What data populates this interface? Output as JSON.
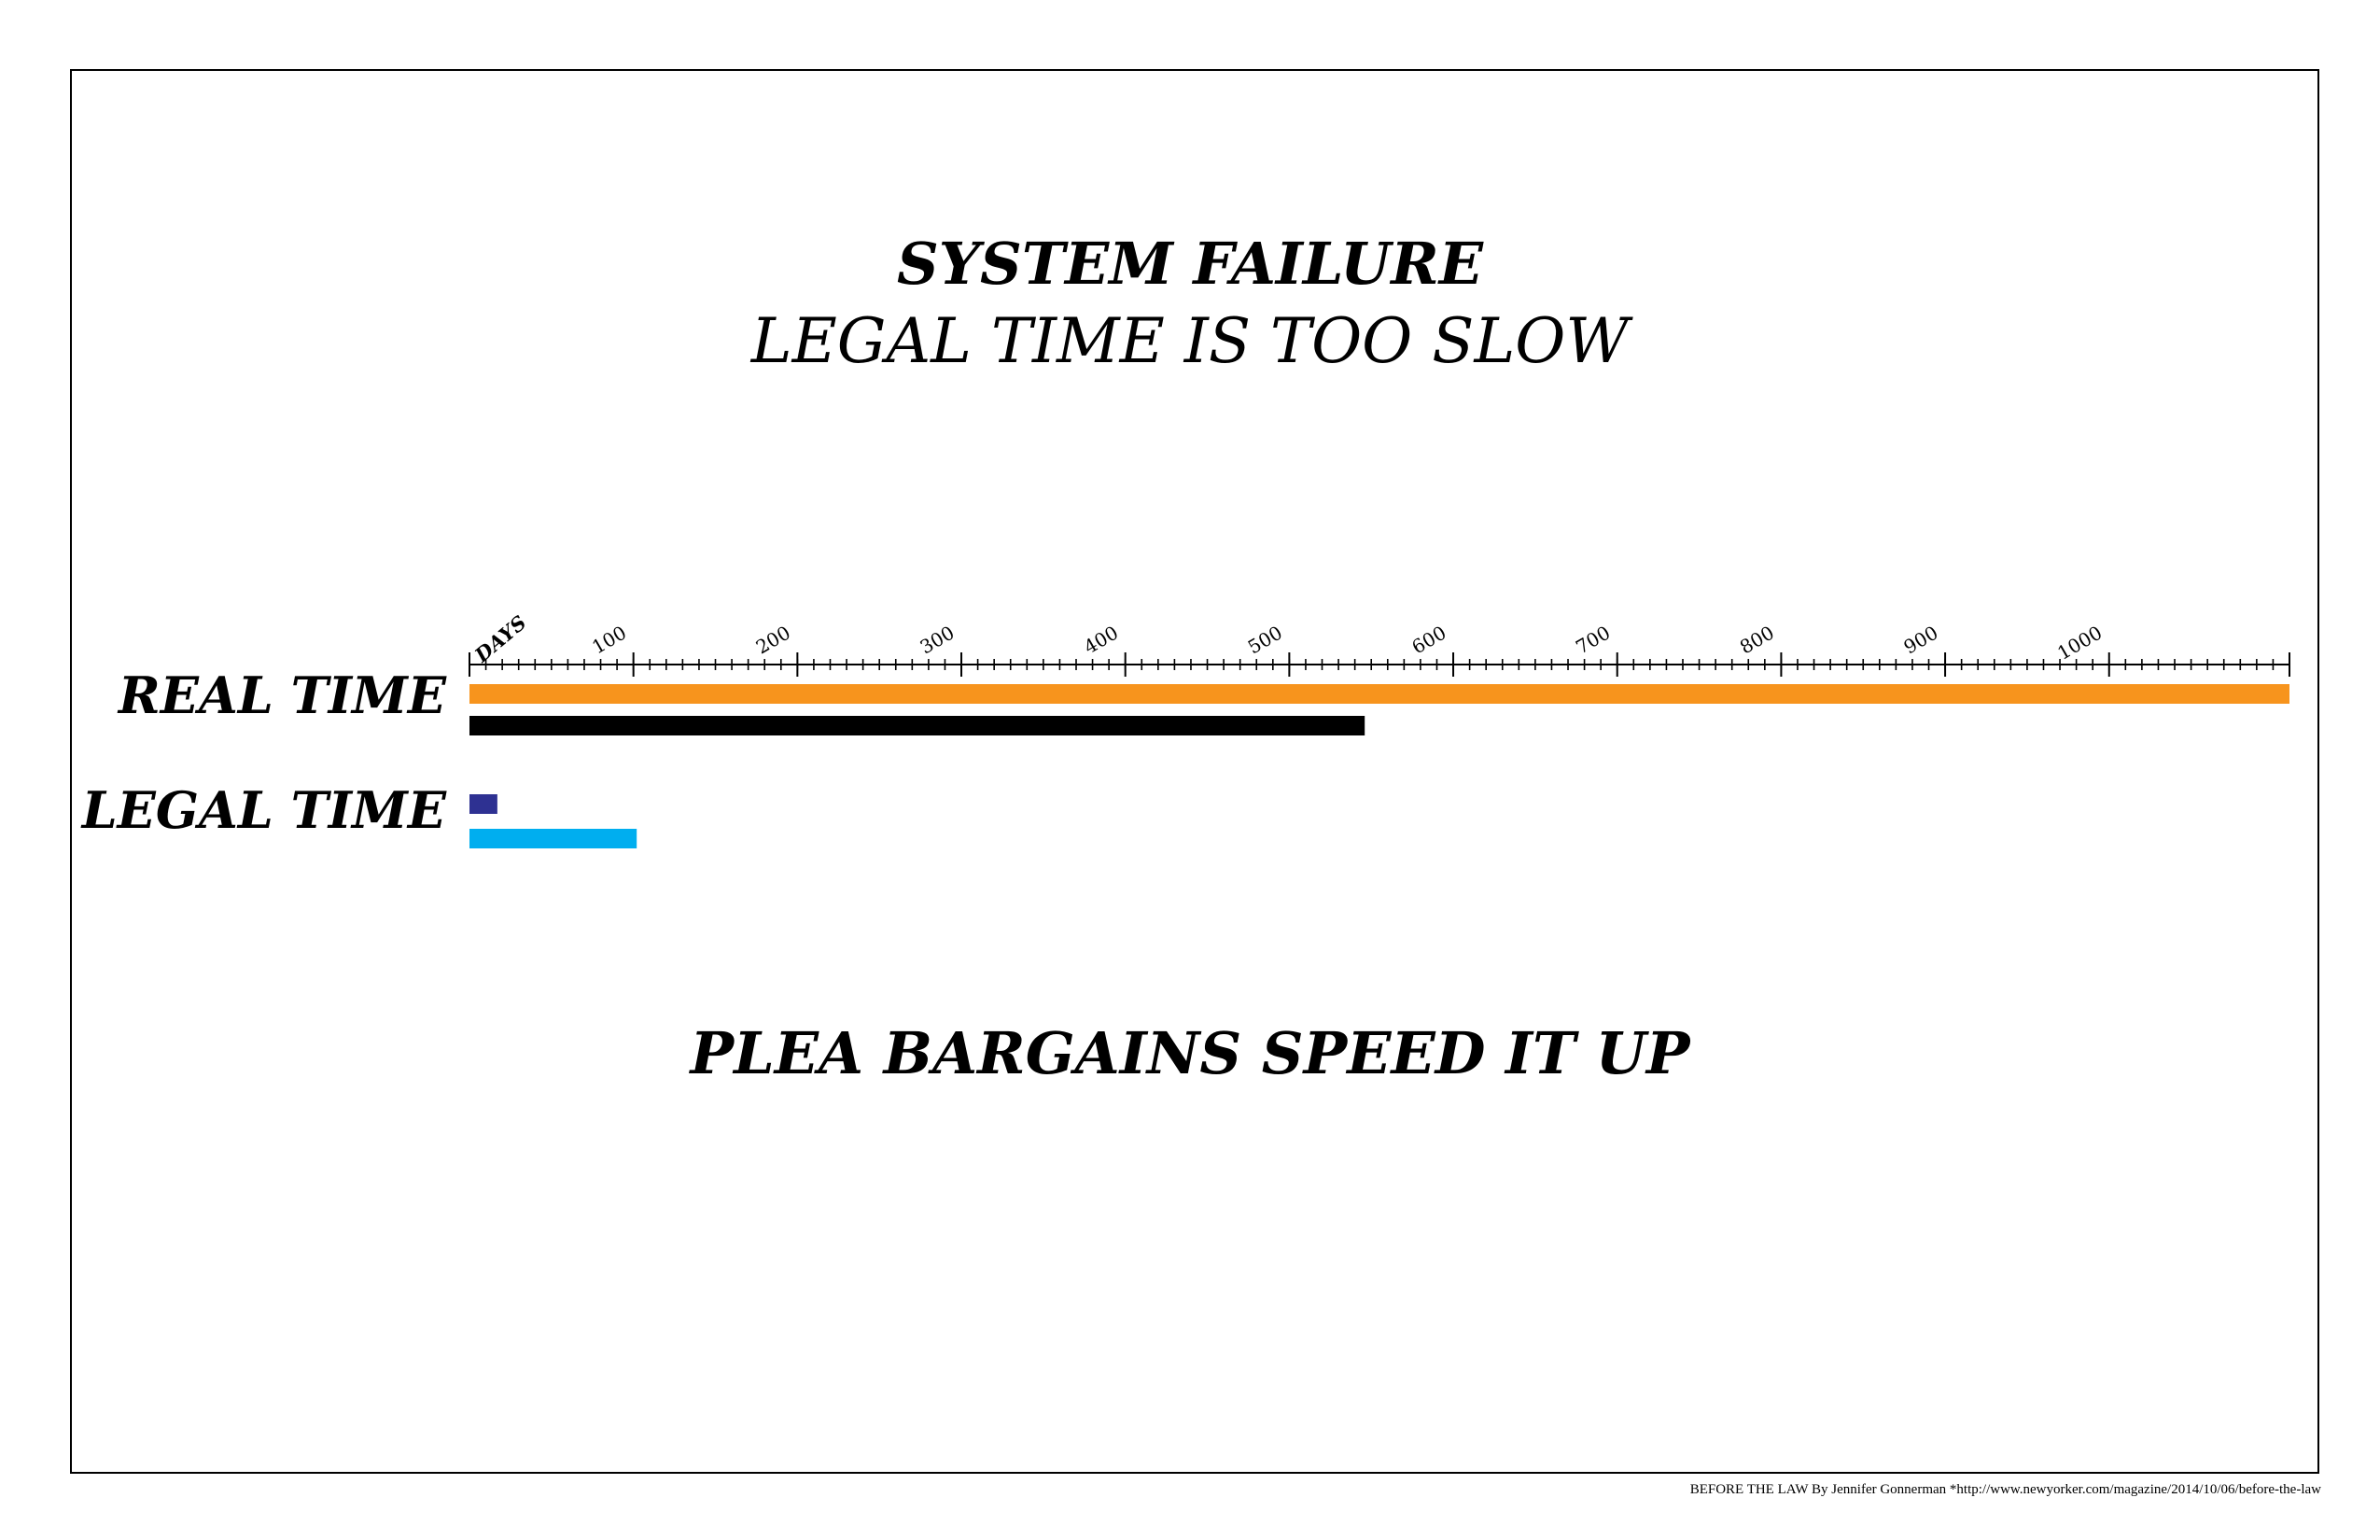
{
  "header": {
    "title": "SYSTEM FAILURE",
    "subtitle": "LEGAL TIME IS TOO SLOW"
  },
  "footer_message": "PLEA BARGAINS SPEED IT UP",
  "credit": "BEFORE THE LAW By Jennifer Gonnerman *http://www.newyorker.com/magazine/2014/10/06/before-the-law",
  "chart_data": {
    "type": "bar",
    "orientation": "horizontal",
    "title": "SYSTEM FAILURE",
    "subtitle": "LEGAL TIME IS TOO SLOW",
    "axis": {
      "label": "DAYS",
      "position": "top",
      "range": [
        0,
        1110
      ],
      "major_ticks": [
        100,
        200,
        300,
        400,
        500,
        600,
        700,
        800,
        900,
        1000
      ],
      "minor_tick_step": 10
    },
    "groups": [
      {
        "label": "REAL TIME",
        "bars": [
          {
            "value": 1110,
            "color": "#F7941D"
          },
          {
            "value": 546,
            "color": "#000000"
          }
        ]
      },
      {
        "label": "LEGAL TIME",
        "bars": [
          {
            "value": 17,
            "color": "#2E3192"
          },
          {
            "value": 102,
            "color": "#00AEEF"
          }
        ]
      }
    ],
    "grid": false,
    "legend": "none"
  }
}
